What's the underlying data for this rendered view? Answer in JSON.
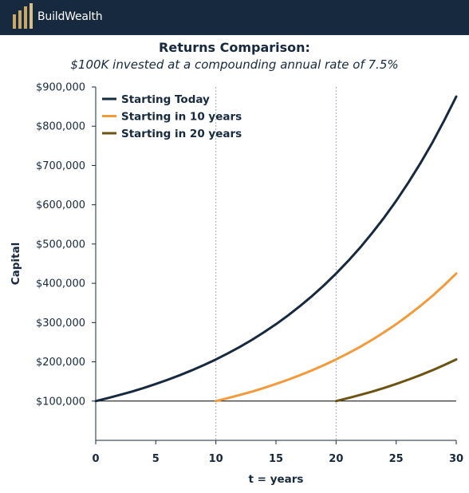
{
  "brand": {
    "name": "BuildWealth",
    "colors": {
      "bar": "#16293f",
      "gold": "#c9a867"
    }
  },
  "chart_data": {
    "type": "line",
    "title": "Returns Comparison:",
    "subtitle": "$100K invested at a compounding annual rate of 7.5%",
    "xlabel": "t = years",
    "ylabel": "Capital",
    "xlim": [
      0,
      30
    ],
    "ylim": [
      0,
      900000
    ],
    "xticks": [
      0,
      5,
      10,
      15,
      20,
      25,
      30
    ],
    "xtick_labels": [
      "0",
      "5",
      "10",
      "15",
      "20",
      "25",
      "30"
    ],
    "yticks": [
      100000,
      200000,
      300000,
      400000,
      500000,
      600000,
      700000,
      800000,
      900000
    ],
    "ytick_labels": [
      "$100,000",
      "$200,000",
      "$300,000",
      "$400,000",
      "$500,000",
      "$600,000",
      "$700,000",
      "$800,000",
      "$900,000"
    ],
    "reference_line": 100000,
    "vlines": [
      10,
      20
    ],
    "legend_position": "top-left",
    "grid": false,
    "series": [
      {
        "name": "Starting Today",
        "color": "#16293f",
        "x": [
          0,
          1,
          2,
          3,
          4,
          5,
          6,
          7,
          8,
          9,
          10,
          11,
          12,
          13,
          14,
          15,
          16,
          17,
          18,
          19,
          20,
          21,
          22,
          23,
          24,
          25,
          26,
          27,
          28,
          29,
          30
        ],
        "y": [
          100000,
          107500,
          115560,
          124230,
          133550,
          143560,
          154330,
          165900,
          178350,
          191720,
          206100,
          221570,
          238180,
          256040,
          275250,
          295890,
          318080,
          341940,
          367580,
          395150,
          424790,
          456650,
          490900,
          527720,
          567290,
          609840,
          655580,
          704740,
          757600,
          814420,
          875500
        ]
      },
      {
        "name": "Starting in 10 years",
        "color": "#f39a3c",
        "x": [
          10,
          11,
          12,
          13,
          14,
          15,
          16,
          17,
          18,
          19,
          20,
          21,
          22,
          23,
          24,
          25,
          26,
          27,
          28,
          29,
          30
        ],
        "y": [
          100000,
          107500,
          115560,
          124230,
          133550,
          143560,
          154330,
          165900,
          178350,
          191720,
          206100,
          221570,
          238180,
          256040,
          275250,
          295890,
          318080,
          341940,
          367580,
          395150,
          424790
        ]
      },
      {
        "name": "Starting in 20 years",
        "color": "#6b5412",
        "x": [
          20,
          21,
          22,
          23,
          24,
          25,
          26,
          27,
          28,
          29,
          30
        ],
        "y": [
          100000,
          107500,
          115560,
          124230,
          133550,
          143560,
          154330,
          165900,
          178350,
          191720,
          206100
        ]
      }
    ]
  }
}
